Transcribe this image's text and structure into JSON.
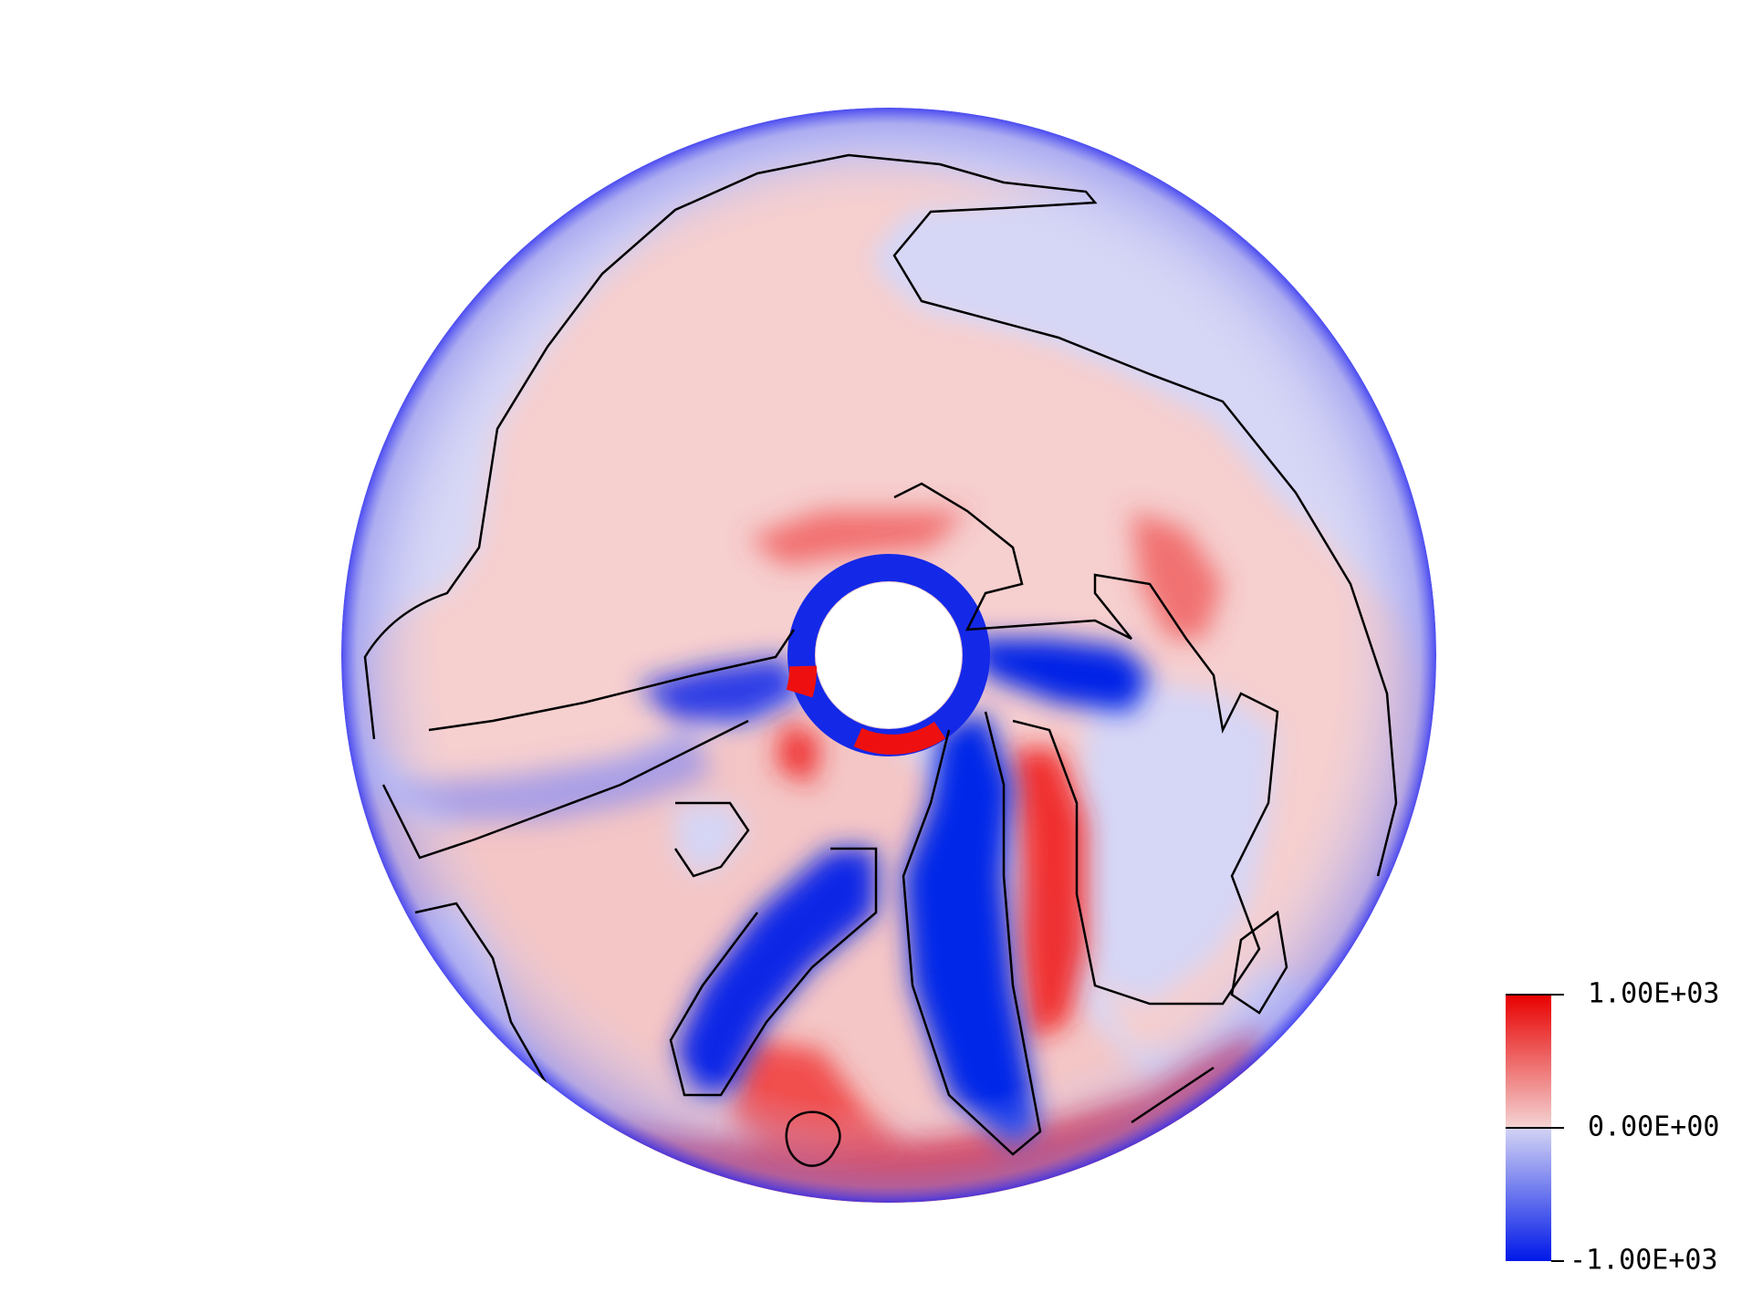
{
  "colorbar": {
    "max_label": "1.00E+03",
    "mid_label": "0.00E+00",
    "min_label": "-1.00E+03",
    "colors": {
      "max": "#e80000",
      "mid_high": "#f4c8c8",
      "mid_low": "#c8c8f4",
      "min": "#0018e8"
    }
  },
  "field_colors": {
    "strong_positive": "#f01010",
    "weak_positive": "#f6cccc",
    "weak_negative": "#d4d4f6",
    "strong_negative": "#0024e6",
    "zero_contour": "#000000"
  }
}
